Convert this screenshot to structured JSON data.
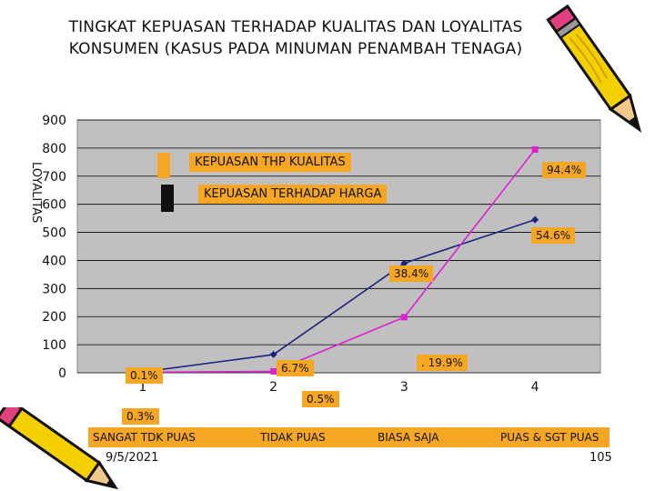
{
  "slide": {
    "title": "TINGKAT KEPUASAN TERHADAP KUALITAS DAN LOYALITAS KONSUMEN (KASUS PADA MINUMAN PENAMBAH TENAGA)",
    "date": "9/5/2021",
    "page_number": "105"
  },
  "chart_data": {
    "type": "line",
    "title": "",
    "ylabel": "LOYALITAS",
    "ylim": [
      0,
      900
    ],
    "yticks": [
      0,
      100,
      200,
      300,
      400,
      500,
      600,
      700,
      800,
      900
    ],
    "x": [
      1,
      2,
      3,
      4
    ],
    "xticks": [
      "1",
      "2",
      "3",
      "4"
    ],
    "category_labels": [
      "SANGAT TDK PUAS",
      "TIDAK PUAS",
      "BIASA SAJA",
      "PUAS & SGT PUAS"
    ],
    "grid": true,
    "series": [
      {
        "name": "KEPUASAN TERHADAP HARGA",
        "color": "#1a237e",
        "marker": "diamond",
        "values": [
          3,
          65,
          390,
          545
        ]
      },
      {
        "name": "KEPUASAN THP KUALITAS",
        "color": "#e020d0",
        "marker": "square",
        "values": [
          2,
          5,
          198,
          795
        ]
      }
    ],
    "legend": [
      {
        "label": "KEPUASAN THP KUALITAS",
        "swatch": "#f5a623"
      },
      {
        "label": "KEPUASAN TERHADAP HARGA",
        "swatch": "#111111"
      }
    ],
    "annotations": [
      "94.4%",
      "54.6%",
      "38.4%",
      ". 19.9%",
      "6.7%",
      "0.5%",
      "0.1%",
      "0.3%"
    ]
  },
  "colors": {
    "plot_bg": "#c0c0c0",
    "label_bg": "#f5a623",
    "grid": "#000000"
  }
}
